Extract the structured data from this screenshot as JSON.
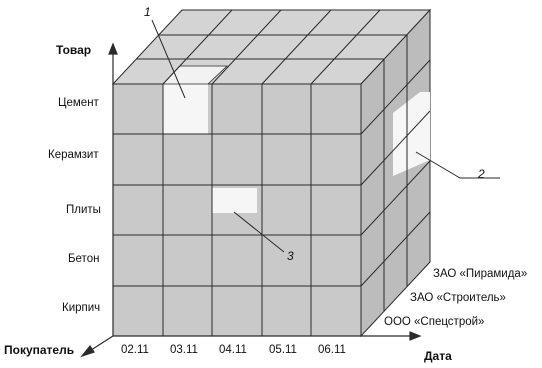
{
  "axes": {
    "product_label": "Товар",
    "buyer_label": "Покупатель",
    "date_label": "Дата"
  },
  "products": [
    "Цемент",
    "Керамзит",
    "Плиты",
    "Бетон",
    "Кирпич"
  ],
  "dates": [
    "02.11",
    "03.11",
    "04.11",
    "05.11",
    "06.11"
  ],
  "buyers": [
    "ЗАО «Пирамида»",
    "ЗАО «Строитель»",
    "ООО «Спецстрой»"
  ],
  "callouts": [
    "1",
    "2",
    "3"
  ],
  "colors": {
    "cube_fill": "#c9c9c9",
    "top_fill": "#d4d4d4",
    "side_fill": "#bcbcbc",
    "highlight": "#f6f6f6",
    "lines": "#2a2a2a"
  }
}
